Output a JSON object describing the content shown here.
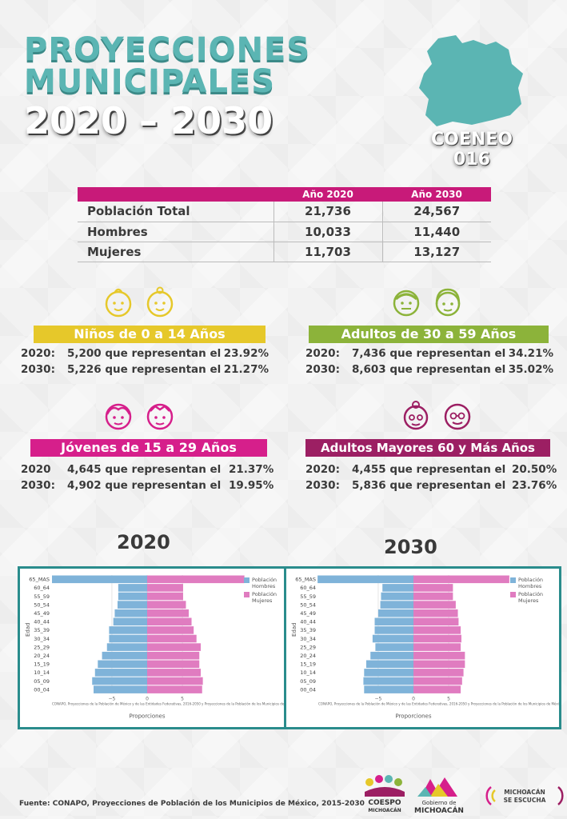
{
  "title": {
    "line1": "PROYECCIONES",
    "line2": "MUNICIPALES",
    "line3": "2020 – 2030"
  },
  "municipality": {
    "name": "COENEO",
    "code": "016"
  },
  "table": {
    "headers": [
      "",
      "Año 2020",
      "Año 2030"
    ],
    "rows": [
      {
        "label": "Población Total",
        "y2020": "21,736",
        "y2030": "24,567"
      },
      {
        "label": "Hombres",
        "y2020": "10,033",
        "y2030": "11,440"
      },
      {
        "label": "Mujeres",
        "y2020": "11,703",
        "y2030": "13,127"
      }
    ]
  },
  "groups": [
    {
      "title": "Niños de 0 a 14 Años",
      "color": "#e6c82a",
      "face_color": "#e6c82a",
      "lines": [
        {
          "year": "2020:",
          "text": "5,200 que representan el",
          "pct": "23.92%"
        },
        {
          "year": "2030:",
          "text": "5,226 que representan el",
          "pct": "21.27%"
        }
      ]
    },
    {
      "title": "Adultos de 30 a 59 Años",
      "color": "#8cb33a",
      "face_color": "#8cb33a",
      "lines": [
        {
          "year": "2020:",
          "text": "7,436 que representan el",
          "pct": "34.21%"
        },
        {
          "year": "2030:",
          "text": "8,603 que representan el",
          "pct": "35.02%"
        }
      ]
    },
    {
      "title": "Jóvenes de 15 a 29 Años",
      "color": "#d61f8b",
      "face_color": "#d61f8b",
      "lines": [
        {
          "year": "2020",
          "text": "4,645 que representan el",
          "pct": "21.37%"
        },
        {
          "year": "2030:",
          "text": "4,902 que representan el",
          "pct": "19.95%"
        }
      ]
    },
    {
      "title": "Adultos Mayores  60 y Más Años",
      "color": "#9c1f63",
      "face_color": "#9c1f63",
      "lines": [
        {
          "year": "2020:",
          "text": "4,455 que representan el",
          "pct": "20.50%"
        },
        {
          "year": "2030:",
          "text": "5,836 que representan el",
          "pct": "23.76%"
        }
      ]
    }
  ],
  "pyramid_years": [
    "2020",
    "2030"
  ],
  "chart_data": [
    {
      "type": "bar",
      "orientation": "horizontal",
      "title": "2020",
      "xlabel": "Proporciones",
      "ylabel": "Edad",
      "categories": [
        "65_MAS",
        "60_64",
        "55_59",
        "50_54",
        "45_49",
        "40_44",
        "35_39",
        "30_34",
        "25_29",
        "20_24",
        "15_19",
        "10_14",
        "05_09",
        "00_04"
      ],
      "series": [
        {
          "name": "Población Hombres",
          "color": "#7fb3d9",
          "values": [
            -13.5,
            -4.1,
            -4.1,
            -4.2,
            -4.6,
            -4.8,
            -5.4,
            -5.4,
            -5.7,
            -6.4,
            -7.0,
            -7.4,
            -7.8,
            -7.6
          ]
        },
        {
          "name": "Población Mujeres",
          "color": "#e07cc0",
          "values": [
            13.8,
            5.1,
            5.1,
            5.5,
            5.9,
            6.3,
            6.6,
            7.0,
            7.6,
            7.4,
            7.4,
            7.6,
            7.9,
            7.8
          ]
        }
      ],
      "xticks": [
        "−5",
        "0",
        "5"
      ],
      "xlim": [
        -13.5,
        13.5
      ],
      "note": "CONAPO, Proyecciones de la Población de México y de las Entidades Federativas, 2016-2050 y Proyecciones de la Población de los Municipios de Méxi"
    },
    {
      "type": "bar",
      "orientation": "horizontal",
      "title": "2030",
      "xlabel": "Proporciones",
      "ylabel": "Edad",
      "categories": [
        "65_MAS",
        "60_64",
        "55_59",
        "50_54",
        "45_49",
        "40_44",
        "35_39",
        "30_34",
        "25_29",
        "20_24",
        "15_19",
        "10_14",
        "05_09",
        "00_04"
      ],
      "series": [
        {
          "name": "Población Hombres",
          "color": "#7fb3d9",
          "values": [
            -13.6,
            -4.4,
            -4.6,
            -4.7,
            -5.0,
            -5.5,
            -5.5,
            -5.8,
            -5.4,
            -6.1,
            -6.7,
            -7.0,
            -7.1,
            -7.0
          ]
        },
        {
          "name": "Población Mujeres",
          "color": "#e07cc0",
          "values": [
            13.6,
            5.6,
            5.6,
            6.0,
            6.3,
            6.4,
            6.7,
            6.8,
            6.7,
            7.3,
            7.3,
            7.1,
            6.9,
            6.7
          ]
        }
      ],
      "xticks": [
        "−5",
        "0",
        "5"
      ],
      "xlim": [
        -13.5,
        13.5
      ],
      "note": "CONAPO, Proyecciones de la Población de México y de las Entidades Federativas, 2016-2050 y Proyecciones de la Población de los Municipios de Méxi"
    }
  ],
  "source": "Fuente: CONAPO, Proyecciones de Población de los Municipios de México, 2015-2030",
  "logos": {
    "coespo1": "COESPO",
    "coespo2": "MICHOACÁN",
    "gob1": "Gobierno de",
    "gob2": "MICHOACÁN",
    "esc1": "MICHOACÁN",
    "esc2": "SE ESCUCHA"
  }
}
